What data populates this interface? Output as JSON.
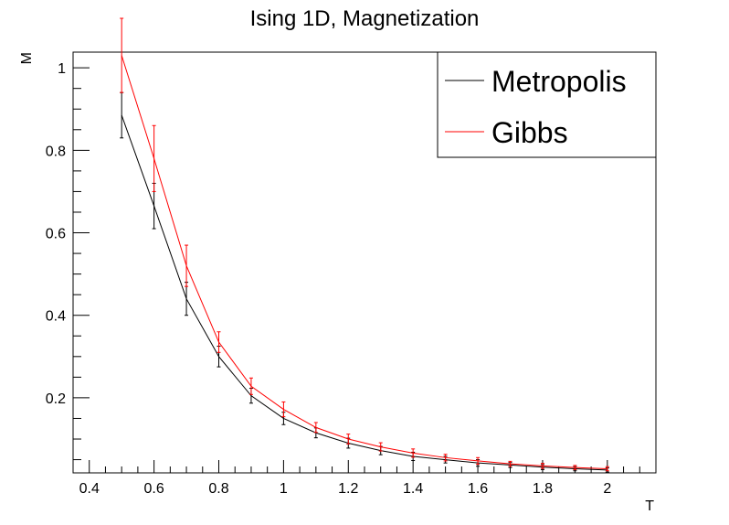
{
  "chart_data": {
    "type": "line",
    "title": "Ising 1D, Magnetization",
    "xlabel": "T",
    "ylabel": "M",
    "xlim": [
      0.35,
      2.15
    ],
    "ylim": [
      0.018,
      1.038
    ],
    "x_ticks": [
      0.4,
      0.6,
      0.8,
      1,
      1.2,
      1.4,
      1.6,
      1.8,
      2
    ],
    "y_ticks": [
      0.2,
      0.4,
      0.6,
      0.8,
      1
    ],
    "grid": false,
    "legend_position": "top-right",
    "x": [
      0.5,
      0.6,
      0.7,
      0.8,
      0.9,
      1.0,
      1.1,
      1.2,
      1.3,
      1.4,
      1.5,
      1.6,
      1.7,
      1.8,
      1.9,
      2.0
    ],
    "series": [
      {
        "name": "Metropolis",
        "color": "#000000",
        "values": [
          0.885,
          0.665,
          0.44,
          0.3,
          0.205,
          0.15,
          0.115,
          0.09,
          0.072,
          0.058,
          0.05,
          0.042,
          0.037,
          0.032,
          0.028,
          0.025
        ],
        "errors": [
          0.055,
          0.055,
          0.04,
          0.025,
          0.018,
          0.015,
          0.012,
          0.012,
          0.01,
          0.01,
          0.008,
          0.008,
          0.006,
          0.006,
          0.005,
          0.005
        ]
      },
      {
        "name": "Gibbs",
        "color": "#ff0000",
        "values": [
          1.03,
          0.78,
          0.52,
          0.335,
          0.228,
          0.172,
          0.128,
          0.1,
          0.081,
          0.066,
          0.055,
          0.047,
          0.04,
          0.035,
          0.031,
          0.028
        ],
        "errors": [
          0.09,
          0.08,
          0.05,
          0.025,
          0.02,
          0.018,
          0.012,
          0.012,
          0.01,
          0.01,
          0.008,
          0.008,
          0.006,
          0.006,
          0.005,
          0.005
        ]
      }
    ]
  }
}
